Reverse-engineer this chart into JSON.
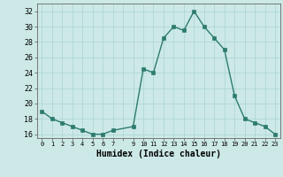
{
  "x": [
    0,
    1,
    2,
    3,
    4,
    5,
    6,
    7,
    9,
    10,
    11,
    12,
    13,
    14,
    15,
    16,
    17,
    18,
    19,
    20,
    21,
    22,
    23
  ],
  "y": [
    19.0,
    18.0,
    17.5,
    17.0,
    16.5,
    16.0,
    16.0,
    16.5,
    17.0,
    24.5,
    24.0,
    28.5,
    30.0,
    29.5,
    32.0,
    30.0,
    28.5,
    27.0,
    21.0,
    18.0,
    17.5,
    17.0,
    16.0
  ],
  "line_color": "#2d7b6e",
  "marker_color": "#2d7b6e",
  "bg_color": "#cce9e7",
  "grid_color": "#aad4d0",
  "xlabel": "Humidex (Indice chaleur)",
  "ylim": [
    15.5,
    33.0
  ],
  "xlim": [
    -0.5,
    23.5
  ],
  "yticks": [
    16,
    18,
    20,
    22,
    24,
    26,
    28,
    30,
    32
  ],
  "xtick_labels": [
    "0",
    "1",
    "2",
    "3",
    "4",
    "5",
    "6",
    "7",
    "",
    "9",
    "10",
    "11",
    "12",
    "13",
    "14",
    "15",
    "16",
    "17",
    "18",
    "19",
    "20",
    "21",
    "22",
    "23"
  ],
  "xlabel_fontsize": 7,
  "ytick_fontsize": 6,
  "xtick_fontsize": 5,
  "linewidth": 1.0,
  "markersize": 2.2
}
